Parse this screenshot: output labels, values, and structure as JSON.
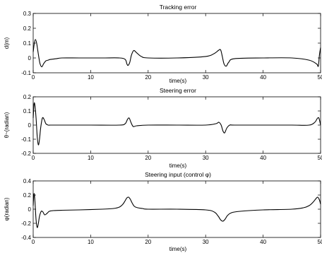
{
  "chart_data": [
    {
      "type": "line",
      "title": "Tracking error",
      "xlabel": "time(s)",
      "ylabel": "d(m)",
      "xlim": [
        0,
        50
      ],
      "ylim": [
        -0.1,
        0.3
      ],
      "xticks": [
        0,
        10,
        20,
        30,
        40,
        50
      ],
      "yticks": [
        -0.1,
        0,
        0.1,
        0.2,
        0.3
      ],
      "xtick_labels": [
        "0",
        "10",
        "20",
        "30",
        "40",
        "50"
      ],
      "ytick_labels": [
        "-0.1",
        "0",
        "0.1",
        "0.2",
        "0.3"
      ],
      "grid": false,
      "series": [
        {
          "color": "#000000",
          "x": [
            0,
            0.2,
            0.4,
            0.6,
            0.8,
            1.0,
            1.2,
            1.5,
            1.8,
            2.2,
            2.6,
            3.0,
            4.0,
            5,
            8,
            12,
            15,
            16.0,
            16.3,
            16.5,
            16.8,
            17.1,
            17.5,
            18.0,
            18.8,
            20,
            25,
            30,
            31.5,
            32.2,
            32.6,
            32.9,
            33.2,
            33.6,
            34.0,
            35,
            40,
            45,
            48,
            49.3,
            49.6,
            49.8,
            50
          ],
          "y": [
            0.04,
            0.1,
            0.125,
            0.1,
            0.05,
            0.0,
            -0.04,
            -0.06,
            -0.04,
            -0.02,
            -0.015,
            -0.01,
            -0.005,
            0.0,
            0.0,
            0.0,
            0.0,
            -0.01,
            -0.04,
            -0.05,
            -0.03,
            0.02,
            0.05,
            0.035,
            0.01,
            0.0,
            0.0,
            0.01,
            0.03,
            0.05,
            0.055,
            0.01,
            -0.04,
            -0.055,
            -0.03,
            -0.005,
            0.0,
            0.0,
            -0.015,
            -0.04,
            -0.055,
            0.02,
            0.07
          ]
        }
      ]
    },
    {
      "type": "line",
      "title": "Steering error",
      "xlabel": "time(s)",
      "ylabel": "θ~(radian)",
      "xlim": [
        0,
        50
      ],
      "ylim": [
        -0.2,
        0.2
      ],
      "xticks": [
        0,
        10,
        20,
        30,
        40,
        50
      ],
      "yticks": [
        -0.2,
        -0.1,
        0,
        0.1,
        0.2
      ],
      "xtick_labels": [
        "0",
        "10",
        "20",
        "30",
        "40",
        "50"
      ],
      "ytick_labels": [
        "-0.2",
        "-0.1",
        "0",
        "0.1",
        "0.2"
      ],
      "grid": false,
      "series": [
        {
          "color": "#000000",
          "x": [
            0,
            0.15,
            0.3,
            0.5,
            0.7,
            0.9,
            1.1,
            1.3,
            1.6,
            1.9,
            2.2,
            2.6,
            3.0,
            4.0,
            5,
            10,
            15,
            16.0,
            16.4,
            16.7,
            17.0,
            17.4,
            18.0,
            20,
            25,
            30,
            31.8,
            32.3,
            32.7,
            33.0,
            33.3,
            33.7,
            34.2,
            35,
            40,
            45,
            48,
            49.0,
            49.4,
            49.7,
            50
          ],
          "y": [
            0.05,
            0.15,
            0.14,
            0.05,
            -0.08,
            -0.14,
            -0.1,
            -0.02,
            0.05,
            0.04,
            0.01,
            0.0,
            0.0,
            0.0,
            0.0,
            0.0,
            0.0,
            0.01,
            0.04,
            0.05,
            0.02,
            -0.01,
            -0.005,
            0.0,
            0.0,
            0.0,
            0.01,
            0.02,
            0.0,
            -0.04,
            -0.055,
            -0.02,
            0.0,
            0.0,
            0.0,
            0.0,
            0.0,
            0.02,
            0.045,
            0.05,
            0.0
          ]
        }
      ]
    },
    {
      "type": "line",
      "title": "Steering input (control φ)",
      "xlabel": "time(s)",
      "ylabel": "φ(radian)",
      "xlim": [
        0,
        50
      ],
      "ylim": [
        -0.4,
        0.4
      ],
      "xticks": [
        0,
        10,
        20,
        30,
        40,
        50
      ],
      "yticks": [
        -0.4,
        -0.2,
        0,
        0.2,
        0.4
      ],
      "xtick_labels": [
        "0",
        "10",
        "20",
        "30",
        "40",
        "50"
      ],
      "ytick_labels": [
        "-0.4",
        "-0.2",
        "0",
        "0.2",
        "0.4"
      ],
      "grid": false,
      "series": [
        {
          "color": "#000000",
          "x": [
            0,
            0.15,
            0.3,
            0.5,
            0.7,
            0.9,
            1.1,
            1.4,
            1.7,
            2.0,
            2.4,
            2.8,
            3.5,
            5,
            8,
            12,
            14,
            15,
            15.6,
            16.0,
            16.3,
            16.6,
            16.9,
            17.2,
            17.6,
            18.2,
            19,
            20,
            25,
            30,
            31.5,
            32.2,
            32.6,
            33.0,
            33.4,
            33.8,
            34.5,
            36,
            40,
            45,
            47,
            48,
            48.7,
            49.2,
            49.5,
            49.8,
            50
          ],
          "y": [
            0.05,
            0.22,
            0.12,
            -0.15,
            -0.26,
            -0.2,
            -0.1,
            -0.03,
            -0.04,
            -0.08,
            -0.06,
            -0.03,
            -0.02,
            -0.015,
            -0.01,
            0.0,
            0.01,
            0.03,
            0.07,
            0.12,
            0.16,
            0.17,
            0.14,
            0.09,
            0.04,
            0.02,
            0.01,
            0.0,
            0.0,
            -0.01,
            -0.04,
            -0.1,
            -0.15,
            -0.17,
            -0.14,
            -0.09,
            -0.05,
            -0.03,
            -0.01,
            0.0,
            0.02,
            0.05,
            0.1,
            0.15,
            0.17,
            0.13,
            0.07
          ]
        }
      ]
    }
  ]
}
